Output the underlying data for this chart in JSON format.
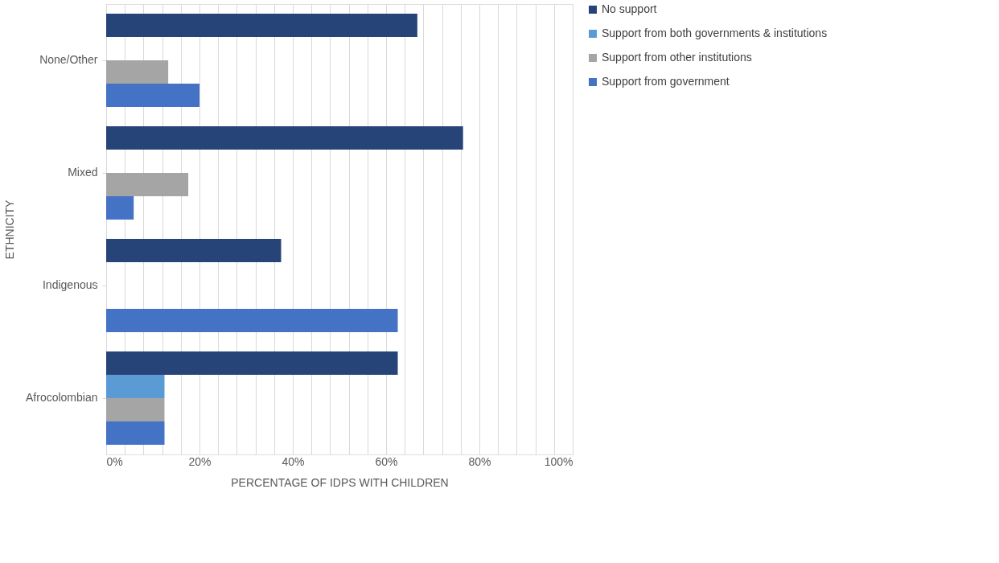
{
  "chart_data": {
    "type": "bar",
    "orientation": "horizontal",
    "xlabel": "PERCENTAGE OF IDPS WITH CHILDREN",
    "ylabel": "ETHNICITY",
    "categories": [
      "None/Other",
      "Mixed",
      "Indigenous",
      "Afrocolombian"
    ],
    "series": [
      {
        "name": "No support",
        "color": "#264478",
        "values": [
          66.7,
          76.5,
          37.5,
          62.5
        ]
      },
      {
        "name": "Support from both governments & institutions",
        "color": "#5b9bd5",
        "values": [
          null,
          null,
          null,
          12.5
        ]
      },
      {
        "name": "Support from other institutions",
        "color": "#a5a5a5",
        "values": [
          13.3,
          17.6,
          null,
          12.5
        ]
      },
      {
        "name": "Support from government",
        "color": "#4472c4",
        "values": [
          20,
          5.9,
          62.5,
          12.5
        ]
      }
    ],
    "xlim": [
      0,
      100
    ],
    "xticks": [
      {
        "value": 0,
        "label": "0%"
      },
      {
        "value": 4,
        "label": null
      },
      {
        "value": 8,
        "label": null
      },
      {
        "value": 12,
        "label": null
      },
      {
        "value": 16,
        "label": null
      },
      {
        "value": 20,
        "label": "20%"
      },
      {
        "value": 24,
        "label": null
      },
      {
        "value": 28,
        "label": null
      },
      {
        "value": 32,
        "label": null
      },
      {
        "value": 36,
        "label": null
      },
      {
        "value": 40,
        "label": "40%"
      },
      {
        "value": 44,
        "label": null
      },
      {
        "value": 48,
        "label": null
      },
      {
        "value": 52,
        "label": null
      },
      {
        "value": 56,
        "label": null
      },
      {
        "value": 60,
        "label": "60%"
      },
      {
        "value": 64,
        "label": null
      },
      {
        "value": 68,
        "label": null
      },
      {
        "value": 72,
        "label": null
      },
      {
        "value": 76,
        "label": null
      },
      {
        "value": 80,
        "label": "80%"
      },
      {
        "value": 84,
        "label": null
      },
      {
        "value": 88,
        "label": null
      },
      {
        "value": 92,
        "label": null
      },
      {
        "value": 96,
        "label": null
      },
      {
        "value": 100,
        "label": "100%"
      }
    ],
    "grid": "x",
    "legend": "right"
  }
}
